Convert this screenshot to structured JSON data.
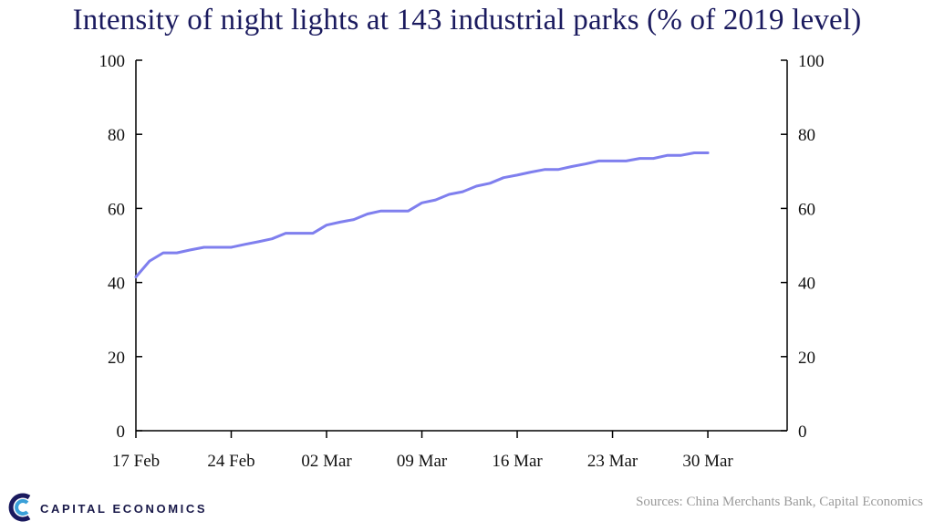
{
  "chart_data": {
    "type": "line",
    "title": "Intensity of night lights at 143 industrial parks (% of 2019 level)",
    "ylim": [
      0,
      100
    ],
    "yticks": [
      0,
      20,
      40,
      60,
      80,
      100
    ],
    "xticks": [
      "17 Feb",
      "24 Feb",
      "02 Mar",
      "09 Mar",
      "16 Mar",
      "23 Mar",
      "30 Mar"
    ],
    "x": [
      "17 Feb",
      "18 Feb",
      "19 Feb",
      "20 Feb",
      "21 Feb",
      "22 Feb",
      "23 Feb",
      "24 Feb",
      "25 Feb",
      "26 Feb",
      "27 Feb",
      "28 Feb",
      "29 Feb",
      "01 Mar",
      "02 Mar",
      "03 Mar",
      "04 Mar",
      "05 Mar",
      "06 Mar",
      "07 Mar",
      "08 Mar",
      "09 Mar",
      "10 Mar",
      "11 Mar",
      "12 Mar",
      "13 Mar",
      "14 Mar",
      "15 Mar",
      "16 Mar",
      "17 Mar",
      "18 Mar",
      "19 Mar",
      "20 Mar",
      "21 Mar",
      "22 Mar",
      "23 Mar",
      "24 Mar",
      "25 Mar",
      "26 Mar",
      "27 Mar",
      "28 Mar",
      "29 Mar",
      "30 Mar"
    ],
    "series": [
      {
        "values": [
          41.5,
          45.8,
          48.0,
          48.0,
          48.8,
          49.5,
          49.5,
          49.5,
          50.3,
          51.0,
          51.8,
          53.3,
          53.3,
          53.3,
          55.5,
          56.3,
          57.0,
          58.5,
          59.3,
          59.3,
          59.3,
          61.5,
          62.3,
          63.8,
          64.5,
          66.0,
          66.8,
          68.3,
          69.0,
          69.8,
          70.5,
          70.5,
          71.3,
          72.0,
          72.8,
          72.8,
          72.8,
          73.5,
          73.5,
          74.3,
          74.3,
          75.0,
          75.0
        ],
        "color": "#7f7fee"
      }
    ],
    "axes": "left and right y-axes, no gridlines, no legend"
  },
  "branding": {
    "logo_text": "CAPITAL ECONOMICS",
    "logo_icon": "capital-economics-c-icon",
    "sources": "Sources: China Merchants Bank, Capital Economics"
  }
}
